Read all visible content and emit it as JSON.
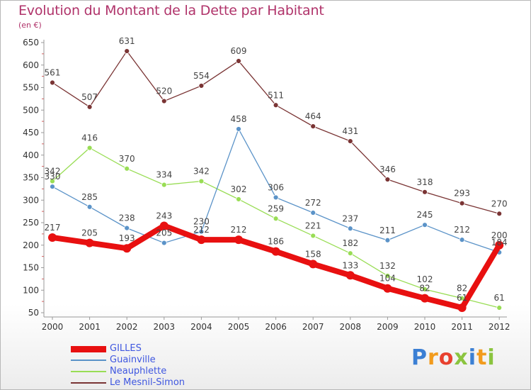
{
  "title": "Evolution du Montant de la Dette par Habitant",
  "subtitle": "(en €)",
  "brand": "Proxiti",
  "chart_data": {
    "type": "line",
    "x": [
      "2000",
      "2001",
      "2002",
      "2003",
      "2004",
      "2005",
      "2006",
      "2007",
      "2008",
      "2009",
      "2010",
      "2011",
      "2012"
    ],
    "ylim": [
      50,
      650
    ],
    "yticks": [
      50,
      100,
      150,
      200,
      250,
      300,
      350,
      400,
      450,
      500,
      550,
      600,
      650
    ],
    "grid": false,
    "legend_position": "bottom-left",
    "series": [
      {
        "name": "GILLES",
        "color": "#e81010",
        "values": [
          217,
          205,
          193,
          243,
          212,
          212,
          186,
          158,
          133,
          104,
          82,
          61,
          200
        ]
      },
      {
        "name": "Guainville",
        "color": "#5b93c8",
        "values": [
          330,
          285,
          238,
          205,
          230,
          458,
          306,
          272,
          237,
          211,
          245,
          212,
          184
        ]
      },
      {
        "name": "Neauphlette",
        "color": "#99dd55",
        "values": [
          342,
          416,
          370,
          334,
          342,
          302,
          259,
          221,
          182,
          132,
          102,
          82,
          61
        ]
      },
      {
        "name": "Le Mesnil-Simon",
        "color": "#7a3434",
        "values": [
          561,
          507,
          631,
          520,
          554,
          609,
          511,
          464,
          431,
          346,
          318,
          293,
          270
        ]
      }
    ]
  }
}
